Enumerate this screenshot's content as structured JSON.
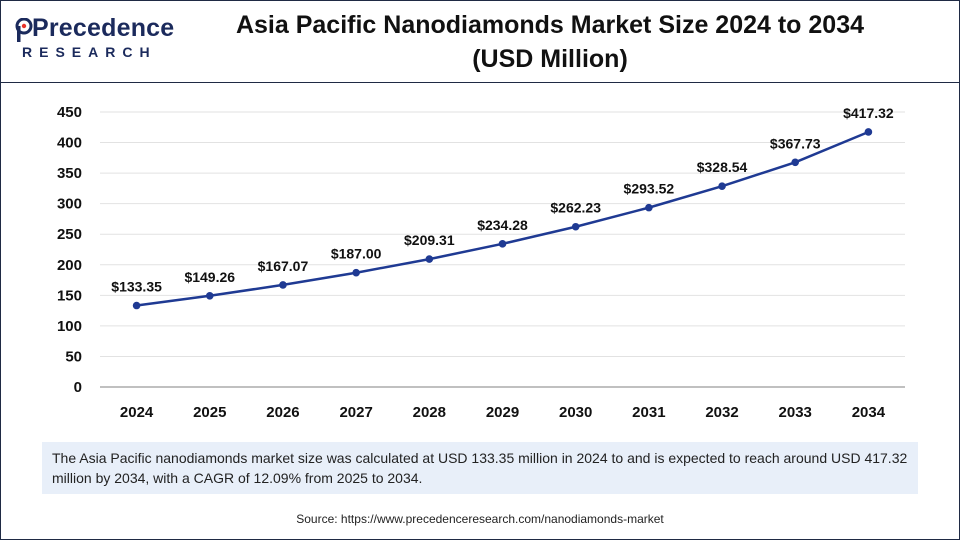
{
  "logo": {
    "brand": "Precedence",
    "sub": "RESEARCH"
  },
  "title_line1": "Asia Pacific Nanodiamonds Market Size 2024 to 2034",
  "title_line2": "(USD Million)",
  "chart_data": {
    "type": "line",
    "title": "Asia Pacific Nanodiamonds Market Size 2024 to 2034 (USD Million)",
    "categories": [
      "2024",
      "2025",
      "2026",
      "2027",
      "2028",
      "2029",
      "2030",
      "2031",
      "2032",
      "2033",
      "2034"
    ],
    "series": [
      {
        "values": [
          133.35,
          149.26,
          167.07,
          187.0,
          209.31,
          234.28,
          262.23,
          293.52,
          328.54,
          367.73,
          417.32
        ],
        "labels": [
          "$133.35",
          "$149.26",
          "$167.07",
          "$187.00",
          "$209.31",
          "$234.28",
          "$262.23",
          "$293.52",
          "$328.54",
          "$367.73",
          "$417.32"
        ],
        "color": "#1f3a93"
      }
    ],
    "ylim": [
      0,
      450
    ],
    "yticks": [
      "0",
      "50",
      "100",
      "150",
      "200",
      "250",
      "300",
      "350",
      "400",
      "450"
    ],
    "grid": true
  },
  "note": "The Asia Pacific nanodiamonds market size was calculated at USD 133.35 million in 2024 to and is expected to reach around USD 417.32 million by 2034, with a CAGR of 12.09% from 2025 to 2034.",
  "source": "Source: https://www.precedenceresearch.com/nanodiamonds-market"
}
